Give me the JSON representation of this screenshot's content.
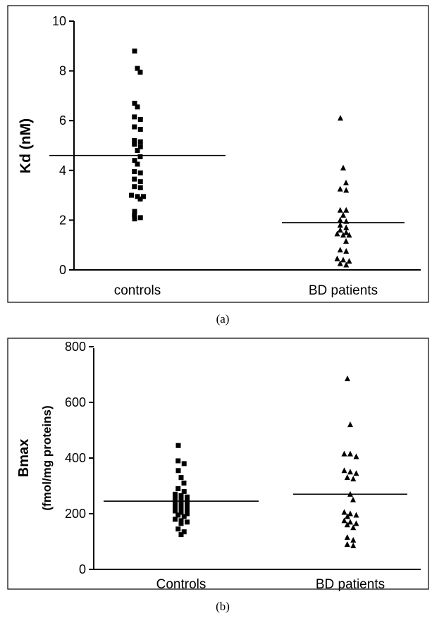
{
  "chart_data": [
    {
      "type": "scatter",
      "panel": "a",
      "caption": "(a)",
      "ylabel": "Kd (nM)",
      "ylim": [
        0,
        10
      ],
      "yticks": [
        "0",
        "2",
        "4",
        "6",
        "8",
        "10"
      ],
      "yticks_values": [
        0,
        2,
        4,
        6,
        8,
        10
      ],
      "categories": [
        "controls",
        "BD patients"
      ],
      "series": [
        {
          "category": "controls",
          "marker": "square",
          "mean": 4.6,
          "values": [
            8.8,
            8.1,
            7.95,
            6.7,
            6.55,
            6.15,
            6.05,
            5.75,
            5.65,
            5.2,
            5.15,
            5.05,
            4.95,
            4.8,
            4.55,
            4.4,
            4.25,
            3.95,
            3.9,
            3.65,
            3.55,
            3.35,
            3.3,
            3.0,
            2.95,
            2.95,
            2.85,
            2.35,
            2.2,
            2.1,
            2.05
          ]
        },
        {
          "category": "BD patients",
          "marker": "triangle",
          "mean": 1.9,
          "values": [
            6.1,
            4.1,
            3.5,
            3.25,
            3.2,
            2.4,
            2.4,
            2.2,
            2.0,
            1.95,
            1.8,
            1.7,
            1.6,
            1.5,
            1.45,
            1.4,
            1.4,
            1.15,
            0.8,
            0.75,
            0.45,
            0.4,
            0.35,
            0.25,
            0.2
          ]
        }
      ]
    },
    {
      "type": "scatter",
      "panel": "b",
      "caption": "(b)",
      "ylabel": "Bmax",
      "ylabel2": "(fmol/mg proteins)",
      "ylim": [
        0,
        800
      ],
      "yticks": [
        "0",
        "200",
        "400",
        "600",
        "800"
      ],
      "yticks_values": [
        0,
        200,
        400,
        600,
        800
      ],
      "categories": [
        "Controls",
        "BD patients"
      ],
      "series": [
        {
          "category": "Controls",
          "marker": "square",
          "mean": 245,
          "values": [
            445,
            390,
            380,
            355,
            330,
            310,
            290,
            280,
            270,
            265,
            260,
            255,
            250,
            245,
            240,
            235,
            230,
            225,
            220,
            215,
            210,
            205,
            200,
            195,
            190,
            180,
            175,
            170,
            165,
            145,
            135,
            125
          ]
        },
        {
          "category": "BD patients",
          "marker": "triangle",
          "mean": 270,
          "values": [
            685,
            520,
            415,
            415,
            405,
            355,
            350,
            345,
            330,
            325,
            270,
            250,
            205,
            200,
            195,
            190,
            175,
            170,
            165,
            160,
            150,
            115,
            105,
            90,
            85
          ]
        }
      ]
    }
  ]
}
